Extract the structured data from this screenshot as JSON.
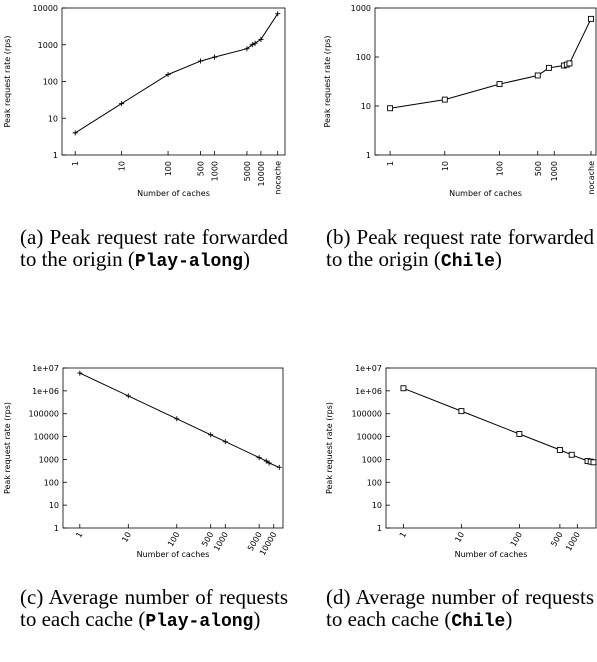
{
  "chart_data": [
    {
      "type": "line",
      "xlabel": "Number of caches",
      "ylabel": "Peak request rate (rps)",
      "caption": [
        "(a) Peak request rate forwarded to the origin (",
        "Play-along",
        ")"
      ],
      "xscale": "log",
      "yscale": "log",
      "marker": "plus",
      "color": "#000000",
      "xlim": [
        0.52,
        33000
      ],
      "ylim": [
        1,
        10000
      ],
      "xticks": [
        1,
        10,
        100,
        500,
        1000,
        5000,
        10000,
        {
          "value": 23000,
          "label": "nocache"
        }
      ],
      "yticks": [
        1,
        10,
        100,
        1000,
        10000
      ],
      "x": [
        1,
        10,
        100,
        500,
        1000,
        5000,
        6500,
        7500,
        10000,
        23000
      ],
      "values": [
        4,
        25,
        155,
        360,
        460,
        780,
        1000,
        1100,
        1400,
        7000
      ]
    },
    {
      "type": "line",
      "xlabel": "Number of caches",
      "ylabel": "Peak request rate (rps)",
      "caption": [
        "(b) Peak request rate forwarded to the origin (",
        "Chile",
        ")"
      ],
      "xscale": "log",
      "yscale": "log",
      "marker": "square",
      "color": "#000000",
      "xlim": [
        0.53,
        5800
      ],
      "ylim": [
        1,
        1000
      ],
      "xticks": [
        1,
        10,
        100,
        500,
        1000,
        {
          "value": 4700,
          "label": "nocache"
        }
      ],
      "yticks": [
        1,
        10,
        100,
        1000
      ],
      "x": [
        1,
        10,
        100,
        500,
        800,
        1500,
        1700,
        1900,
        4700
      ],
      "values": [
        9,
        13.5,
        28,
        42,
        60,
        67,
        70,
        74,
        600
      ]
    },
    {
      "type": "line",
      "xlabel": "Number of caches",
      "ylabel": "Peak request rate (rps)",
      "caption": [
        "(c) Average number of requests to each cache (",
        "Play-along",
        ")"
      ],
      "xscale": "log",
      "yscale": "log",
      "marker": "plus",
      "color": "#000000",
      "xlim": [
        0.45,
        15500
      ],
      "ylim": [
        1,
        10000000
      ],
      "xticks": [
        1,
        10,
        100,
        500,
        1000,
        5000,
        10000
      ],
      "yticks": [
        1,
        10,
        100,
        1000,
        10000,
        100000,
        {
          "value": 1000000,
          "label": "1e+06"
        },
        {
          "value": 10000000,
          "label": "1e+07"
        }
      ],
      "x": [
        1,
        10,
        100,
        500,
        1000,
        5000,
        7000,
        8000,
        13000
      ],
      "values": [
        6000000,
        600000,
        60000,
        12000,
        6000,
        1200,
        850,
        700,
        450
      ]
    },
    {
      "type": "line",
      "xlabel": "Number of caches",
      "ylabel": "Peak request rate (rps)",
      "caption": [
        "(d) Average number of requests to each cache (",
        "Chile",
        ")"
      ],
      "xscale": "log",
      "yscale": "log",
      "marker": "square",
      "color": "#000000",
      "xlim": [
        0.5,
        2100
      ],
      "ylim": [
        1,
        10000000
      ],
      "xticks": [
        1,
        10,
        100,
        500,
        1000
      ],
      "yticks": [
        1,
        10,
        100,
        1000,
        10000,
        100000,
        {
          "value": 1000000,
          "label": "1e+06"
        },
        {
          "value": 10000000,
          "label": "1e+07"
        }
      ],
      "x": [
        1,
        10,
        100,
        500,
        800,
        1500,
        1700,
        1900
      ],
      "values": [
        1300000,
        130000,
        13000,
        2600,
        1600,
        850,
        800,
        750
      ]
    }
  ]
}
